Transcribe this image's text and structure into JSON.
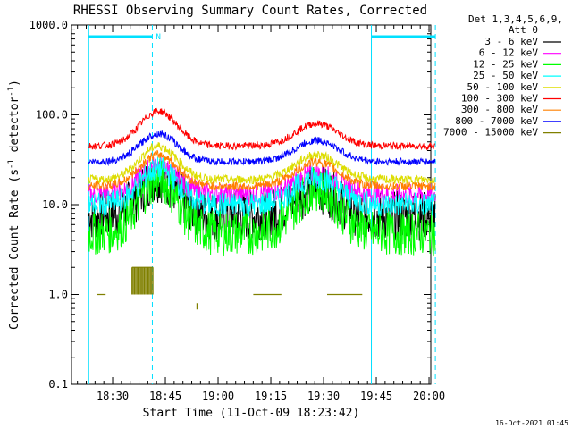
{
  "chart_data": {
    "type": "line",
    "title": "RHESSI Observing Summary Count Rates, Corrected",
    "xlabel": "Start Time (11-Oct-09 18:23:42)",
    "ylabel_main": "Corrected Count Rate (s",
    "ylabel_sup1": "-1",
    "ylabel_mid": " detector",
    "ylabel_sup2": "-1",
    "ylabel_end": ")",
    "ylog": true,
    "ylim": [
      0.1,
      1000
    ],
    "xlim_minutes": [
      18.3,
      120.5
    ],
    "y_ticks": [
      {
        "value": 0.1,
        "label": "0.1"
      },
      {
        "value": 1,
        "label": "1.0"
      },
      {
        "value": 10,
        "label": "10.0"
      },
      {
        "value": 100,
        "label": "100.0"
      },
      {
        "value": 1000,
        "label": "1000.0"
      }
    ],
    "x_ticks": [
      {
        "minutes": 30,
        "label": "18:30"
      },
      {
        "minutes": 45,
        "label": "18:45"
      },
      {
        "minutes": 60,
        "label": "19:00"
      },
      {
        "minutes": 75,
        "label": "19:15"
      },
      {
        "minutes": 90,
        "label": "19:30"
      },
      {
        "minutes": 105,
        "label": "19:45"
      },
      {
        "minutes": 120,
        "label": "20:00"
      }
    ],
    "legend": {
      "header1": "Det 1,3,4,5,6,9,",
      "header2": "Att 0",
      "placement": "outside-right"
    },
    "series": [
      {
        "name": "3 - 6 keV",
        "color": "#000000",
        "base": 7.5,
        "p1": 20,
        "p2": 15,
        "noise": 0.28
      },
      {
        "name": "6 - 12 keV",
        "color": "#ff00ff",
        "base": 13,
        "p1": 27,
        "p2": 22,
        "noise": 0.12
      },
      {
        "name": "12 - 25 keV",
        "color": "#00ff00",
        "base": 4.8,
        "p1": 19,
        "p2": 15,
        "noise": 0.25
      },
      {
        "name": "25 - 50 keV",
        "color": "#00ffff",
        "base": 10,
        "p1": 25,
        "p2": 20,
        "noise": 0.14
      },
      {
        "name": "50 - 100 keV",
        "color": "#dddd00",
        "base": 19,
        "p1": 45,
        "p2": 36,
        "noise": 0.05
      },
      {
        "name": "100 - 300 keV",
        "color": "#ff0000",
        "base": 45,
        "p1": 110,
        "p2": 80,
        "noise": 0.04
      },
      {
        "name": "300 - 800 keV",
        "color": "#ff8000",
        "base": 16,
        "p1": 36,
        "p2": 30,
        "noise": 0.05
      },
      {
        "name": "800 - 7000 keV",
        "color": "#0000ff",
        "base": 30,
        "p1": 62,
        "p2": 52,
        "noise": 0.04
      },
      {
        "name": "7000 - 15000 keV",
        "color": "#808000",
        "base": 1,
        "p1": 2,
        "p2": 1,
        "noise": 0
      }
    ],
    "annotations": {
      "night_flag_label": "N",
      "night_start_minutes": 23.2,
      "night_end_minutes": 41.3,
      "day_start_minutes": 103.6,
      "day_end_minutes": 121.8
    }
  },
  "footer": {
    "timestamp": "16-Oct-2021 01:45"
  }
}
